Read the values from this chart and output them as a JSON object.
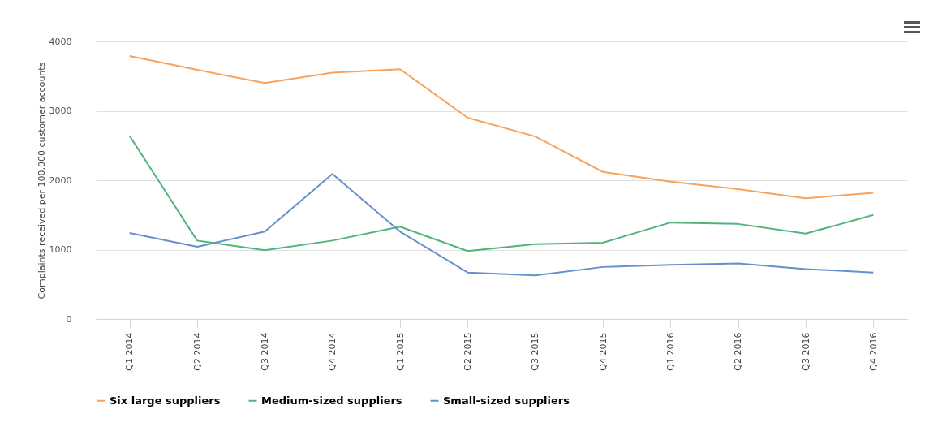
{
  "chart_data": {
    "type": "line",
    "ylabel": "Complaints received per 100,000 customer accounts",
    "categories": [
      "Q1 2014",
      "Q2 2014",
      "Q3 2014",
      "Q4 2014",
      "Q1 2015",
      "Q2 2015",
      "Q3 2015",
      "Q4 2015",
      "Q1 2016",
      "Q2 2016",
      "Q3 2016",
      "Q4 2016"
    ],
    "series": [
      {
        "name": "Six large suppliers",
        "color": "#f7a35c",
        "values": [
          3790,
          3590,
          3400,
          3550,
          3600,
          2900,
          2630,
          2120,
          1980,
          1870,
          1740,
          1820
        ]
      },
      {
        "name": "Medium-sized suppliers",
        "color": "#50b47b",
        "values": [
          2640,
          1130,
          990,
          1130,
          1330,
          980,
          1080,
          1100,
          1390,
          1370,
          1230,
          1500
        ]
      },
      {
        "name": "Small-sized suppliers",
        "color": "#6690cc",
        "values": [
          1240,
          1040,
          1260,
          2090,
          1260,
          670,
          630,
          750,
          780,
          800,
          720,
          670
        ]
      }
    ],
    "ylim": [
      0,
      4000
    ],
    "yticks": [
      0,
      1000,
      2000,
      3000,
      4000
    ],
    "grid": "y",
    "legend": "bottom",
    "marker": "none",
    "line_style": "solid"
  }
}
